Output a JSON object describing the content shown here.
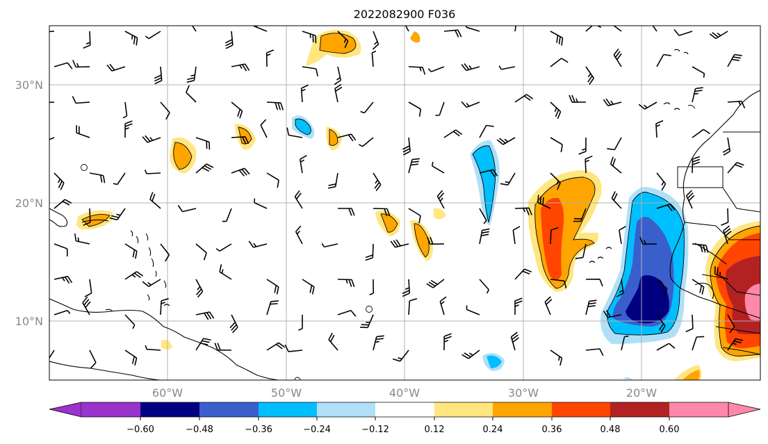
{
  "title": "2022082900 F036",
  "lat_labels": [
    "30°N",
    "20°N",
    "10°N"
  ],
  "lon_labels": [
    "60°W",
    "50°W",
    "40°W",
    "30°W",
    "20°W"
  ],
  "colorbar": {
    "ticks": [
      "−0.60",
      "−0.48",
      "−0.36",
      "−0.24",
      "−0.12",
      "0.12",
      "0.24",
      "0.36",
      "0.48",
      "0.60"
    ],
    "colors": [
      "#9933cc",
      "#000080",
      "#3a5fcd",
      "#00bfff",
      "#b0e0f8",
      "#ffffff",
      "#ffe680",
      "#ffa500",
      "#ff4500",
      "#b22222",
      "#ff88aa"
    ]
  },
  "chart_data": {
    "type": "map",
    "projection": "lat-lon",
    "lon_range": [
      -70,
      -10
    ],
    "lat_range": [
      5,
      35
    ],
    "grid": true,
    "field": "contour-filled scalar with wind barbs",
    "contour_levels": [
      -0.6,
      -0.48,
      -0.36,
      -0.24,
      -0.12,
      0.12,
      0.24,
      0.36,
      0.48,
      0.6
    ],
    "colorbar_extend": "both"
  }
}
